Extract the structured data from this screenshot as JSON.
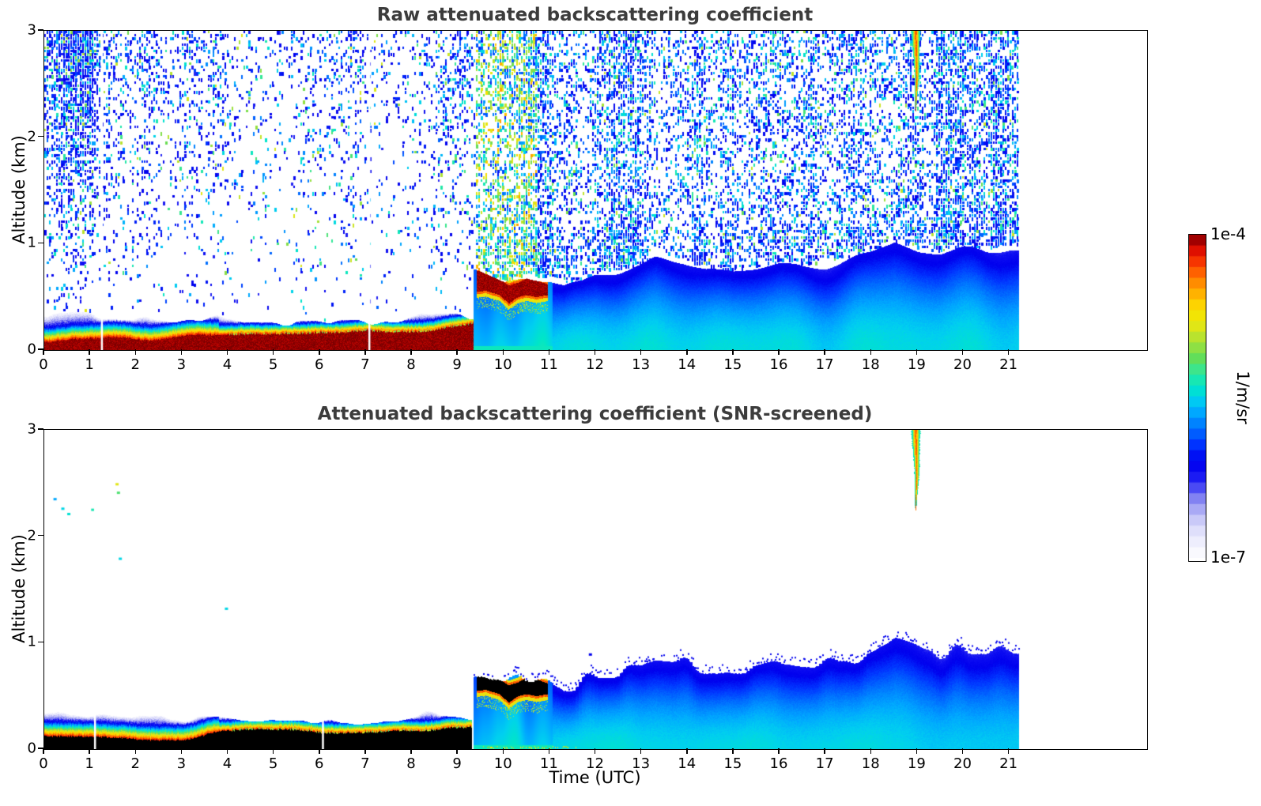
{
  "panels": [
    {
      "id": "raw",
      "title": "Raw attenuated backscattering coefficient",
      "ylabel": "Altitude (km)",
      "yticks": [
        0,
        1,
        2,
        3
      ],
      "xticks": [
        0,
        1,
        2,
        3,
        4,
        5,
        6,
        7,
        8,
        9,
        10,
        11,
        12,
        13,
        14,
        15,
        16,
        17,
        18,
        19,
        20,
        21
      ]
    },
    {
      "id": "screened",
      "title": "Attenuated backscattering coefficient (SNR-screened)",
      "ylabel": "Altitude (km)",
      "xlabel": "Time (UTC)",
      "yticks": [
        0,
        1,
        2,
        3
      ],
      "xticks": [
        0,
        1,
        2,
        3,
        4,
        5,
        6,
        7,
        8,
        9,
        10,
        11,
        12,
        13,
        14,
        15,
        16,
        17,
        18,
        19,
        20,
        21
      ]
    }
  ],
  "colorbar": {
    "top_label": "1e-4",
    "bottom_label": "1e-7",
    "label": "1/m/sr"
  },
  "chart_data": {
    "type": "heatmap",
    "x": {
      "label": "Time (UTC)",
      "unit": "hours UTC",
      "lim": [
        0,
        24
      ],
      "ticks": [
        0,
        1,
        2,
        3,
        4,
        5,
        6,
        7,
        8,
        9,
        10,
        11,
        12,
        13,
        14,
        15,
        16,
        17,
        18,
        19,
        20,
        21
      ]
    },
    "y": {
      "label": "Altitude (km)",
      "unit": "km",
      "lim": [
        0,
        3
      ],
      "ticks": [
        0,
        1,
        2,
        3
      ]
    },
    "colorscale": {
      "min": "1e-7",
      "max": "1e-4",
      "unit": "1/m/sr",
      "log": true
    },
    "cmap_stops": [
      [
        0.0,
        "#ffffff"
      ],
      [
        0.05,
        "#eeeefd"
      ],
      [
        0.1,
        "#d8d8fa"
      ],
      [
        0.14,
        "#b4b4f6"
      ],
      [
        0.18,
        "#8888f2"
      ],
      [
        0.22,
        "#4444f4"
      ],
      [
        0.26,
        "#0d0df2"
      ],
      [
        0.3,
        "#0000ee"
      ],
      [
        0.35,
        "#0033ff"
      ],
      [
        0.4,
        "#0070ff"
      ],
      [
        0.45,
        "#00a8ff"
      ],
      [
        0.49,
        "#00d0f0"
      ],
      [
        0.53,
        "#00e6c8"
      ],
      [
        0.57,
        "#2ee89e"
      ],
      [
        0.62,
        "#66dd55"
      ],
      [
        0.67,
        "#a8e238"
      ],
      [
        0.71,
        "#dce61a"
      ],
      [
        0.75,
        "#f2e405"
      ],
      [
        0.79,
        "#ffcf00"
      ],
      [
        0.83,
        "#ffa400"
      ],
      [
        0.87,
        "#ff7300"
      ],
      [
        0.91,
        "#fb3c00"
      ],
      [
        0.95,
        "#df1000"
      ],
      [
        0.98,
        "#a90000"
      ],
      [
        1.0,
        "#7b0000"
      ]
    ],
    "data_end_hour": 21.2,
    "transition_hour": 9.35,
    "surface_layer": {
      "hours": [
        0,
        1,
        2,
        3,
        3.8,
        4.5,
        5.5,
        6.5,
        7.5,
        8.2,
        8.8,
        9.35
      ],
      "core_top_km": [
        0.1,
        0.1,
        0.1,
        0.11,
        0.16,
        0.17,
        0.17,
        0.16,
        0.17,
        0.18,
        0.22,
        0.24
      ],
      "fade_top_km": [
        0.34,
        0.33,
        0.3,
        0.28,
        0.3,
        0.27,
        0.25,
        0.26,
        0.26,
        0.34,
        0.32,
        0.3
      ]
    },
    "cloud_band": {
      "hours": [
        9.4,
        9.6,
        9.9,
        10.1,
        10.3,
        10.5,
        10.7,
        10.95
      ],
      "top_km": [
        0.74,
        0.72,
        0.66,
        0.6,
        0.63,
        0.68,
        0.67,
        0.63
      ],
      "base_km": [
        0.55,
        0.56,
        0.52,
        0.44,
        0.5,
        0.52,
        0.5,
        0.52
      ]
    },
    "bl_top": {
      "hours": [
        9.35,
        9.4,
        10.0,
        10.5,
        11.0,
        11.3,
        11.7,
        12.0,
        12.5,
        13.0,
        13.3,
        13.9,
        14.4,
        15.0,
        15.5,
        16.0,
        16.5,
        17.0,
        17.5,
        18.0,
        18.5,
        19.0,
        19.5,
        20.0,
        20.5,
        21.0,
        21.2
      ],
      "top_km": [
        0.74,
        0.74,
        0.62,
        0.68,
        0.66,
        0.6,
        0.63,
        0.7,
        0.72,
        0.78,
        0.85,
        0.82,
        0.75,
        0.72,
        0.75,
        0.8,
        0.78,
        0.8,
        0.85,
        0.9,
        1.0,
        0.92,
        0.9,
        0.95,
        0.92,
        0.97,
        0.95
      ]
    },
    "plume": {
      "hour": 18.97,
      "top_km": 3.0,
      "bottom_km": 2.25,
      "halfwidth_hours_top": 0.095,
      "halfwidth_hours_bottom": 0.012
    },
    "gaps_raw_hours": [
      1.25,
      7.07
    ],
    "gaps_screened_hours": [
      1.1,
      6.06
    ],
    "screened_specks": [
      {
        "hour": 0.2,
        "km": 2.36,
        "t": 0.45
      },
      {
        "hour": 0.37,
        "km": 2.27,
        "t": 0.5
      },
      {
        "hour": 0.5,
        "km": 2.22,
        "t": 0.52
      },
      {
        "hour": 1.02,
        "km": 2.26,
        "t": 0.55
      },
      {
        "hour": 1.55,
        "km": 2.5,
        "t": 0.72
      },
      {
        "hour": 1.58,
        "km": 2.42,
        "t": 0.6
      },
      {
        "hour": 1.62,
        "km": 1.8,
        "t": 0.5
      },
      {
        "hour": 3.93,
        "km": 1.33,
        "t": 0.5
      },
      {
        "hour": 11.85,
        "km": 0.9,
        "t": 0.3
      }
    ],
    "noise_left_density": {
      "hours": [
        0,
        1.5,
        1.9,
        2.6,
        3.1,
        3.7,
        4.2,
        8.3,
        8.9,
        9.35
      ],
      "density": [
        0.88,
        0.82,
        0.55,
        0.5,
        0.55,
        0.4,
        0.27,
        0.27,
        0.45,
        0.55
      ]
    }
  }
}
